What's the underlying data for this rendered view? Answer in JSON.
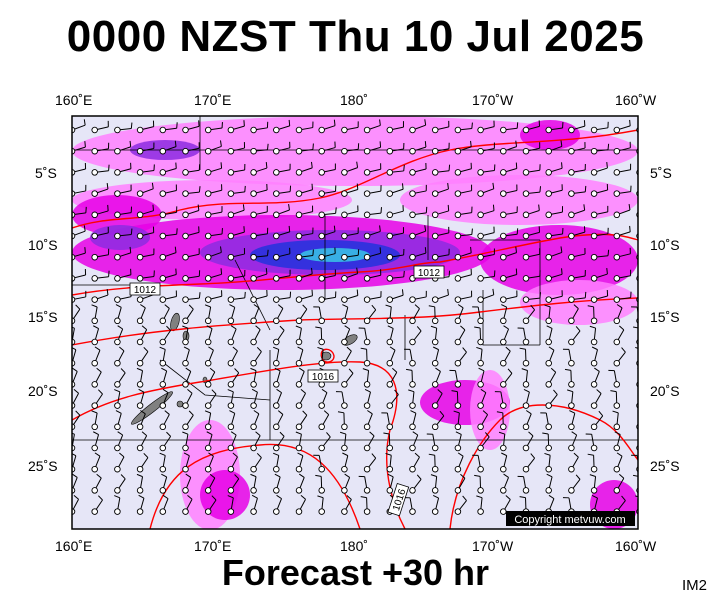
{
  "header": {
    "title": "0000 NZST Thu 10 Jul 2025"
  },
  "footer": {
    "subtitle": "Forecast +30 hr",
    "code": "IM2"
  },
  "map": {
    "copyright": "Copyright metvuw.com",
    "lon_labels": [
      "160˚E",
      "170˚E",
      "180˚",
      "170˚W",
      "160˚W"
    ],
    "lat_labels": [
      "5˚S",
      "10˚S",
      "15˚S",
      "20˚S",
      "25˚S"
    ],
    "isobar_labels": [
      "1012",
      "1012",
      "1016",
      "1016"
    ],
    "colors": {
      "background": "#e6e6f7",
      "rain_light": "#ff80ff",
      "rain_moderate": "#e600e6",
      "rain_heavy": "#8c2ce0",
      "rain_very_heavy": "#2233dd",
      "rain_extreme": "#39c6e6",
      "isobar": "#ff0000",
      "land": "#808080"
    }
  }
}
